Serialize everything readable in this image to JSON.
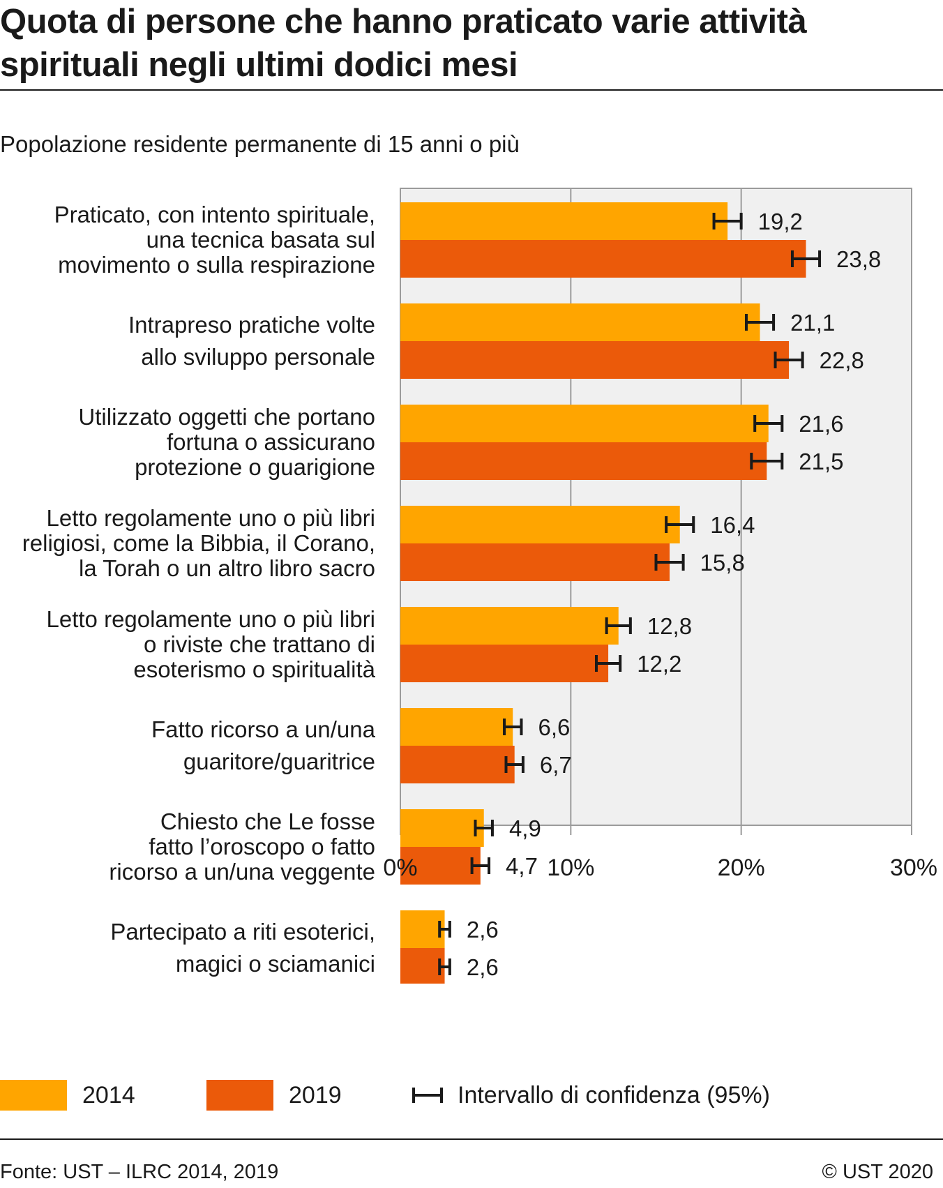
{
  "header": {
    "title_line1": "Quota di persone che hanno praticato varie attività",
    "title_line2": "spirituali negli ultimi dodici mesi",
    "subtitle": "Popolazione residente permanente di 15 anni o più"
  },
  "colors": {
    "y2014": "#FFA500",
    "y2019": "#EB5A0A",
    "plot_bg": "#F0F0F0",
    "grid": "#9b9b9b",
    "error_bar": "#1a1a1a"
  },
  "chart_data": {
    "type": "bar",
    "orientation": "horizontal",
    "categories": [
      [
        "Praticato, con intento spirituale,",
        "una tecnica basata sul",
        "movimento o sulla respirazione"
      ],
      [
        "Intrapreso pratiche volte",
        "allo sviluppo personale"
      ],
      [
        "Utilizzato oggetti che portano",
        "fortuna o assicurano",
        "protezione o guarigione"
      ],
      [
        "Letto regolamente uno o più libri",
        "religiosi, come la Bibbia, il Corano,",
        "la Torah o un altro libro sacro"
      ],
      [
        "Letto regolamente uno o più libri",
        "o riviste che trattano di",
        "esoterismo o spiritualità"
      ],
      [
        "Fatto ricorso a un/una",
        "guaritore/guaritrice"
      ],
      [
        "Chiesto che Le fosse",
        "fatto l’oroscopo o fatto",
        "ricorso a un/una veggente"
      ],
      [
        "Partecipato a riti esoterici,",
        "magici o sciamanici"
      ]
    ],
    "series": [
      {
        "name": "2014",
        "values": [
          19.2,
          21.1,
          21.6,
          16.4,
          12.8,
          6.6,
          4.9,
          2.6
        ],
        "labels": [
          "19,2",
          "21,1",
          "21,6",
          "16,4",
          "12,8",
          "6,6",
          "4,9",
          "2,6"
        ],
        "ci_low": [
          18.4,
          20.3,
          20.8,
          15.6,
          12.1,
          6.1,
          4.4,
          2.3
        ],
        "ci_high": [
          20.0,
          21.9,
          22.4,
          17.2,
          13.5,
          7.1,
          5.4,
          2.9
        ]
      },
      {
        "name": "2019",
        "values": [
          23.8,
          22.8,
          21.5,
          15.8,
          12.2,
          6.7,
          4.7,
          2.6
        ],
        "labels": [
          "23,8",
          "22,8",
          "21,5",
          "15,8",
          "12,2",
          "6,7",
          "4,7",
          "2,6"
        ],
        "ci_low": [
          23.0,
          22.0,
          20.6,
          15.0,
          11.5,
          6.2,
          4.2,
          2.3
        ],
        "ci_high": [
          24.6,
          23.6,
          22.4,
          16.6,
          12.9,
          7.2,
          5.2,
          2.9
        ]
      }
    ],
    "xlim": [
      0,
      30
    ],
    "xticks": [
      0,
      10,
      20,
      30
    ],
    "xtick_labels": [
      "0%",
      "10%",
      "20%",
      "30%"
    ],
    "grid": true
  },
  "legend": {
    "y2014": "2014",
    "y2019": "2019",
    "ci": "Intervallo di confidenza (95%)"
  },
  "footer": {
    "source": "Fonte: UST – ILRC 2014, 2019",
    "copyright": "© UST 2020"
  }
}
